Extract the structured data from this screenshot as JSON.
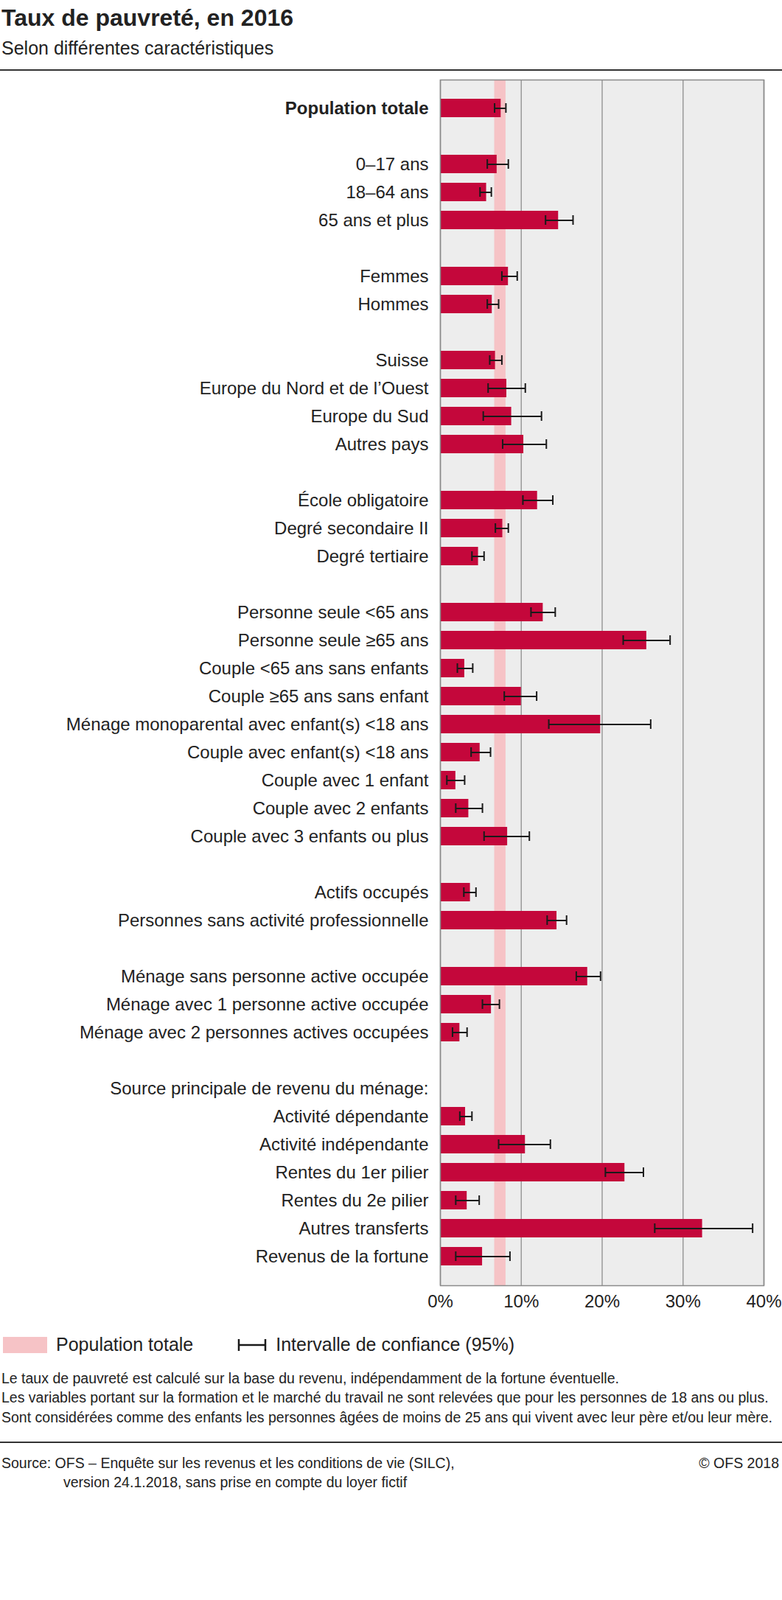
{
  "chart_data": {
    "type": "bar",
    "orientation": "horizontal",
    "title": "Taux de pauvreté, en 2016",
    "subtitle": "Selon différentes caractéristiques",
    "categories": [
      "Population totale",
      null,
      "0–17 ans",
      "18–64 ans",
      "65 ans et plus",
      null,
      "Femmes",
      "Hommes",
      null,
      "Suisse",
      "Europe du Nord et de l’Ouest",
      "Europe du Sud",
      "Autres pays",
      null,
      "École obligatoire",
      "Degré secondaire II",
      "Degré tertiaire",
      null,
      "Personne seule <65 ans",
      "Personne seule ≥65 ans",
      "Couple <65 ans sans enfants",
      "Couple ≥65 ans sans enfant",
      "Ménage monoparental avec enfant(s) <18 ans",
      "Couple avec enfant(s) <18 ans",
      "Couple avec 1 enfant",
      "Couple avec 2 enfants",
      "Couple avec 3 enfants ou plus",
      null,
      "Actifs occupés",
      "Personnes sans activité professionnelle",
      null,
      "Ménage sans personne active occupée",
      "Ménage avec 1 personne active occupée",
      "Ménage avec 2 personnes actives occupées",
      null,
      "Source principale de revenu du ménage:",
      "Activité dépendante",
      "Activité indépendante",
      "Rentes du 1er pilier",
      "Rentes du 2e pilier",
      "Autres transferts",
      "Revenus de la fortune"
    ],
    "values": [
      7.5,
      null,
      7.0,
      5.7,
      14.6,
      null,
      8.4,
      6.4,
      null,
      6.8,
      8.2,
      8.8,
      10.3,
      null,
      12.0,
      7.7,
      4.7,
      null,
      12.7,
      25.5,
      3.0,
      10.0,
      19.8,
      4.9,
      1.9,
      3.5,
      8.3,
      null,
      3.7,
      14.4,
      null,
      18.2,
      6.3,
      2.4,
      null,
      null,
      3.1,
      10.5,
      22.8,
      3.3,
      32.4,
      5.2
    ],
    "ci_low": [
      6.7,
      null,
      5.8,
      4.9,
      13.0,
      null,
      7.6,
      5.8,
      null,
      6.1,
      5.9,
      5.3,
      7.7,
      null,
      10.2,
      6.8,
      3.9,
      null,
      11.2,
      22.6,
      2.1,
      7.9,
      13.4,
      3.8,
      0.8,
      1.9,
      5.4,
      null,
      2.9,
      13.2,
      null,
      16.8,
      5.2,
      1.5,
      null,
      null,
      2.4,
      7.2,
      20.4,
      1.9,
      26.5,
      1.9
    ],
    "ci_high": [
      8.1,
      null,
      8.4,
      6.3,
      16.4,
      null,
      9.5,
      7.2,
      null,
      7.6,
      10.5,
      12.5,
      13.1,
      null,
      13.9,
      8.4,
      5.4,
      null,
      14.2,
      28.4,
      4.0,
      11.9,
      26.0,
      6.2,
      3.0,
      5.2,
      11.0,
      null,
      4.4,
      15.6,
      null,
      19.8,
      7.3,
      3.3,
      null,
      null,
      3.9,
      13.6,
      25.1,
      4.8,
      38.6,
      8.6
    ],
    "color": "#c4073b",
    "xlim": [
      0,
      40
    ],
    "xticks": [
      {
        "value": 0,
        "label": "0%"
      },
      {
        "value": 10,
        "label": "10%"
      },
      {
        "value": 20,
        "label": "20%"
      },
      {
        "value": 30,
        "label": "30%"
      },
      {
        "value": 40,
        "label": "40%"
      }
    ],
    "grid": true,
    "band": {
      "name": "Population totale",
      "range": [
        6.7,
        8.1
      ]
    },
    "error_bar_label": "Intervalle de confiance (95%)",
    "notes": [
      "Le taux de pauvreté est calculé sur la base du revenu, indépendamment de la fortune éventuelle.",
      "Les variables portant sur la formation et le marché du travail ne sont relevées que pour les personnes de 18 ans ou plus. Sont considérées comme des enfants les personnes âgées de moins de 25 ans qui vivent avec leur père et/ou leur mère."
    ],
    "source": [
      "Source: OFS – Enquête sur les revenus et les conditions de vie (SILC),",
      "version 24.1.2018, sans prise en compte du loyer fictif"
    ],
    "copyright": "© OFS 2018"
  }
}
